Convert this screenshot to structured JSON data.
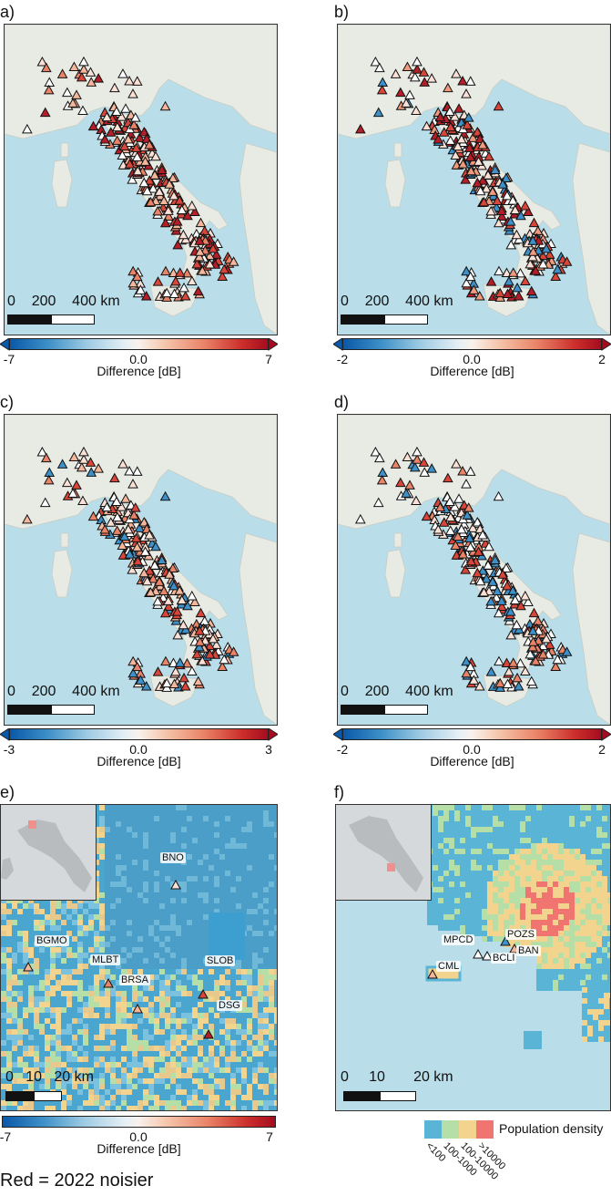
{
  "panels": {
    "a": {
      "label": "a)",
      "vmin": "-7",
      "vmid": "0.0",
      "vmax": "7"
    },
    "b": {
      "label": "b)",
      "vmin": "-2",
      "vmid": "0.0",
      "vmax": "2"
    },
    "c": {
      "label": "c)",
      "vmin": "-3",
      "vmid": "0.0",
      "vmax": "3"
    },
    "d": {
      "label": "d)",
      "vmin": "-2",
      "vmid": "0.0",
      "vmax": "2"
    },
    "e": {
      "label": "e)",
      "vmin": "-7",
      "vmid": "0.0",
      "vmax": "7"
    },
    "f": {
      "label": "f)"
    }
  },
  "colorbar_title": "Difference [dB]",
  "scale_large": {
    "n0": "0",
    "n1": "200",
    "n2": "400 km"
  },
  "scale_small": {
    "n0": "0",
    "n1": "10",
    "n2": "20 km"
  },
  "stations_e": [
    "BNO",
    "BGMO",
    "MLBT",
    "SLOB",
    "BRSA",
    "DSG"
  ],
  "stations_f": [
    "MPCD",
    "POZS",
    "CML",
    "BCLI",
    "BAN"
  ],
  "population_legend": {
    "title": "Population density",
    "classes": [
      "<100",
      "100-1000",
      "100-10000",
      ">10000"
    ],
    "colors": [
      "#5ab4d6",
      "#b5dfa6",
      "#f2d48f",
      "#f07470"
    ]
  },
  "footer": "Red = 2022 noisier",
  "colors": {
    "sea": "#b9dde9",
    "land": "#e8ebe3",
    "low": "#0a58a8",
    "high": "#a50d1f"
  }
}
